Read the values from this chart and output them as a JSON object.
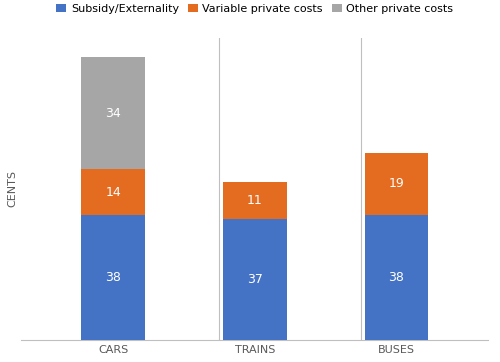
{
  "categories": [
    "CARS",
    "TRAINS",
    "BUSES"
  ],
  "subsidy_externality": [
    38,
    37,
    38
  ],
  "variable_private_costs": [
    14,
    11,
    19
  ],
  "other_private_costs": [
    34,
    0,
    0
  ],
  "colors": {
    "subsidy": "#4472C4",
    "variable": "#E36C21",
    "other": "#A6A6A6"
  },
  "legend_labels": [
    "Subsidy/Externality",
    "Variable private costs",
    "Other private costs"
  ],
  "ylabel": "CENTS",
  "bar_width": 0.45,
  "ylim": [
    0,
    92
  ],
  "label_fontsize": 9,
  "axis_label_fontsize": 8,
  "legend_fontsize": 8,
  "tick_fontsize": 8,
  "divider_color": "#BFBFBF",
  "bg_color": "#FFFFFF"
}
